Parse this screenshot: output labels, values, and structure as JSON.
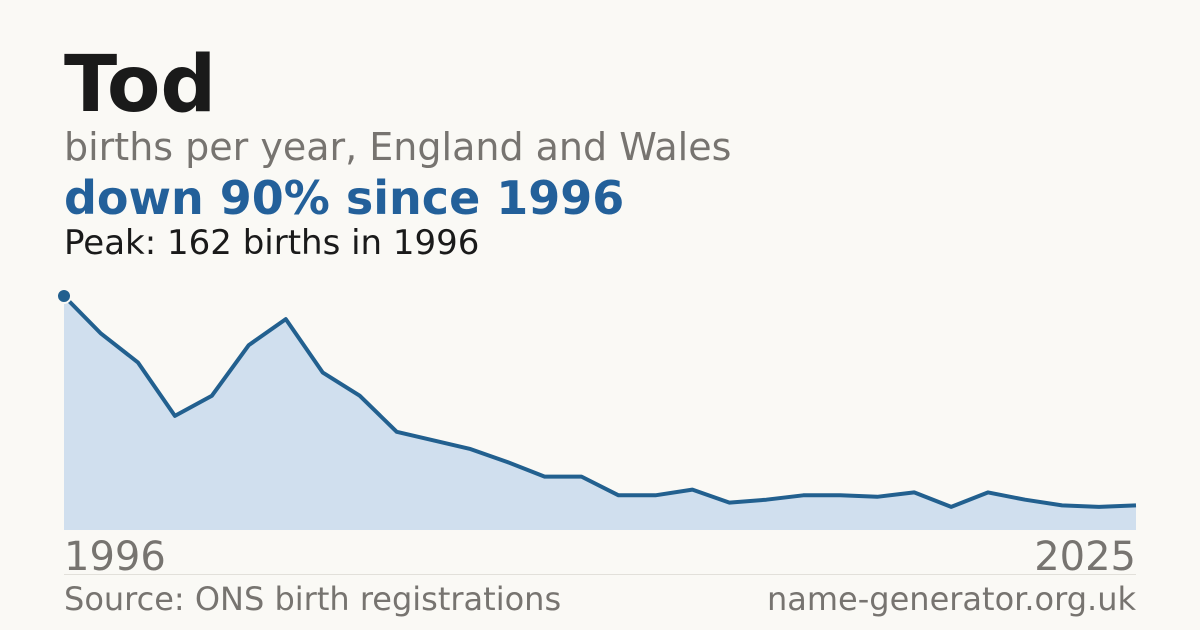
{
  "chart_data": {
    "type": "area",
    "title": "Tod",
    "subtitle": "births per year, England and Wales",
    "headline": "down 90% since 1996",
    "annotation": "Peak: 162 births in 1996",
    "source": "Source: ONS birth registrations",
    "site": "name-generator.org.uk",
    "x": [
      1996,
      1997,
      1998,
      1999,
      2000,
      2001,
      2002,
      2003,
      2004,
      2005,
      2006,
      2007,
      2008,
      2009,
      2010,
      2011,
      2012,
      2013,
      2014,
      2015,
      2016,
      2017,
      2018,
      2019,
      2020,
      2021,
      2022,
      2023,
      2024,
      2025
    ],
    "values": [
      162,
      136,
      116,
      79,
      93,
      128,
      146,
      109,
      93,
      68,
      62,
      56,
      47,
      37,
      37,
      24,
      24,
      28,
      19,
      21,
      24,
      24,
      23,
      26,
      16,
      26,
      21,
      17,
      16,
      17
    ],
    "xlim": [
      1996,
      2025
    ],
    "xticks": [
      1996,
      2025
    ],
    "ylim": [
      0,
      162
    ],
    "color": "#22608f",
    "area_color": "#d0dfee"
  }
}
